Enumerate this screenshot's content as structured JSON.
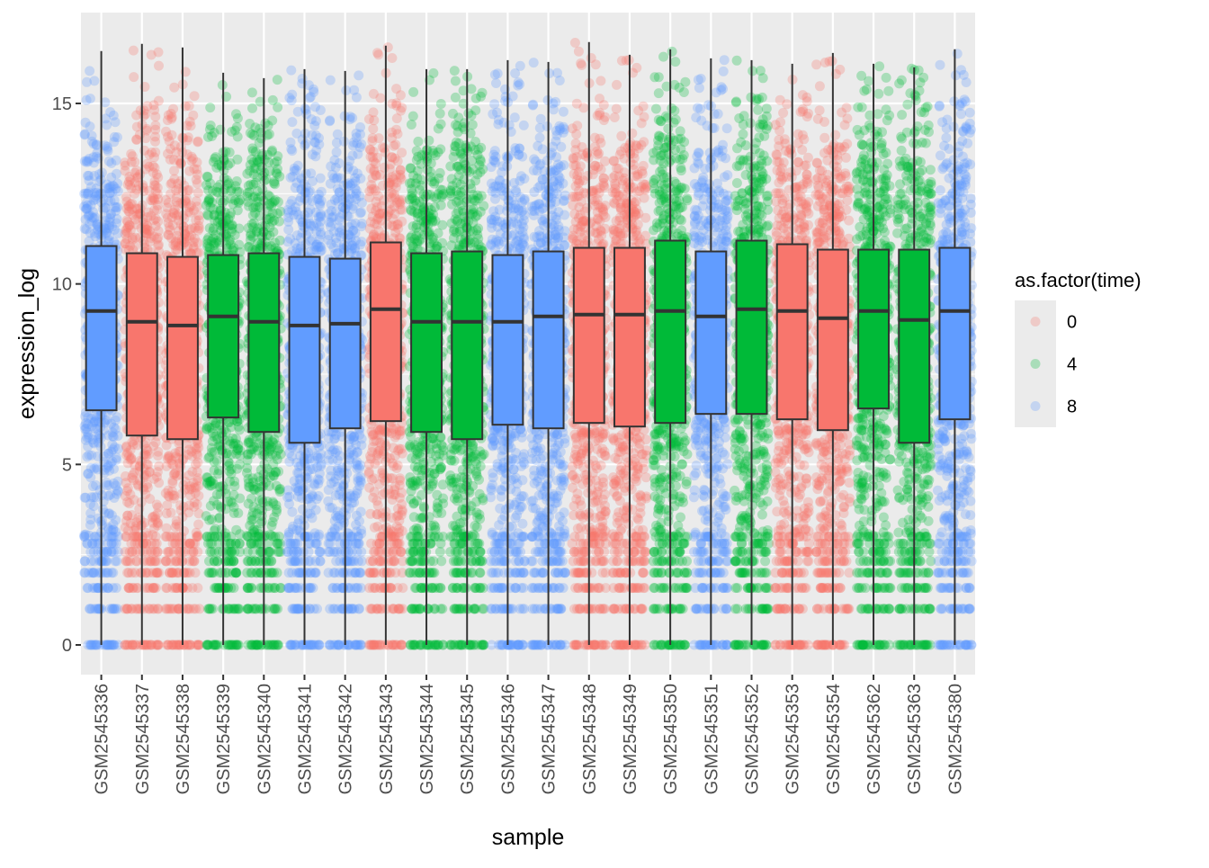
{
  "chart_data": {
    "type": "boxplot",
    "xlabel": "sample",
    "ylabel": "expression_log",
    "ylim": [
      -0.7,
      17.2
    ],
    "yticks": [
      0,
      5,
      10,
      15
    ],
    "ytick_labels": [
      "0",
      "5",
      "10",
      "15"
    ],
    "legend": {
      "title": "as.factor(time)",
      "position": "right",
      "entries": [
        {
          "label": "0",
          "color": "#F8766D"
        },
        {
          "label": "4",
          "color": "#00BA38"
        },
        {
          "label": "8",
          "color": "#619CFF"
        }
      ]
    },
    "background": "#EBEBEB",
    "grid": true,
    "samples": [
      {
        "name": "GSM2545336",
        "time": "8",
        "min": 0,
        "q1": 6.5,
        "median": 9.25,
        "q3": 11.05,
        "max": 16.45
      },
      {
        "name": "GSM2545337",
        "time": "0",
        "min": 0,
        "q1": 5.8,
        "median": 8.95,
        "q3": 10.85,
        "max": 16.65
      },
      {
        "name": "GSM2545338",
        "time": "0",
        "min": 0,
        "q1": 5.7,
        "median": 8.85,
        "q3": 10.75,
        "max": 16.55
      },
      {
        "name": "GSM2545339",
        "time": "4",
        "min": 0,
        "q1": 6.3,
        "median": 9.1,
        "q3": 10.8,
        "max": 15.85
      },
      {
        "name": "GSM2545340",
        "time": "4",
        "min": 0,
        "q1": 5.9,
        "median": 8.95,
        "q3": 10.85,
        "max": 15.7
      },
      {
        "name": "GSM2545341",
        "time": "8",
        "min": 0,
        "q1": 5.6,
        "median": 8.85,
        "q3": 10.75,
        "max": 15.95
      },
      {
        "name": "GSM2545342",
        "time": "8",
        "min": 0,
        "q1": 6.0,
        "median": 8.9,
        "q3": 10.7,
        "max": 15.9
      },
      {
        "name": "GSM2545343",
        "time": "0",
        "min": 0,
        "q1": 6.2,
        "median": 9.3,
        "q3": 11.15,
        "max": 16.6
      },
      {
        "name": "GSM2545344",
        "time": "4",
        "min": 0,
        "q1": 5.9,
        "median": 8.95,
        "q3": 10.85,
        "max": 15.95
      },
      {
        "name": "GSM2545345",
        "time": "4",
        "min": 0,
        "q1": 5.7,
        "median": 8.95,
        "q3": 10.9,
        "max": 15.95
      },
      {
        "name": "GSM2545346",
        "time": "8",
        "min": 0,
        "q1": 6.1,
        "median": 8.95,
        "q3": 10.8,
        "max": 16.2
      },
      {
        "name": "GSM2545347",
        "time": "8",
        "min": 0,
        "q1": 6.0,
        "median": 9.1,
        "q3": 10.9,
        "max": 16.15
      },
      {
        "name": "GSM2545348",
        "time": "0",
        "min": 0,
        "q1": 6.15,
        "median": 9.15,
        "q3": 11.0,
        "max": 16.7
      },
      {
        "name": "GSM2545349",
        "time": "0",
        "min": 0,
        "q1": 6.05,
        "median": 9.15,
        "q3": 11.0,
        "max": 16.35
      },
      {
        "name": "GSM2545350",
        "time": "4",
        "min": 0,
        "q1": 6.15,
        "median": 9.25,
        "q3": 11.2,
        "max": 16.5
      },
      {
        "name": "GSM2545351",
        "time": "8",
        "min": 0,
        "q1": 6.4,
        "median": 9.1,
        "q3": 10.9,
        "max": 16.25
      },
      {
        "name": "GSM2545352",
        "time": "4",
        "min": 0,
        "q1": 6.4,
        "median": 9.3,
        "q3": 11.2,
        "max": 16.2
      },
      {
        "name": "GSM2545353",
        "time": "0",
        "min": 0,
        "q1": 6.25,
        "median": 9.25,
        "q3": 11.1,
        "max": 16.1
      },
      {
        "name": "GSM2545354",
        "time": "0",
        "min": 0,
        "q1": 5.95,
        "median": 9.05,
        "q3": 10.95,
        "max": 16.4
      },
      {
        "name": "GSM2545362",
        "time": "4",
        "min": 0,
        "q1": 6.55,
        "median": 9.25,
        "q3": 10.95,
        "max": 16.1
      },
      {
        "name": "GSM2545363",
        "time": "4",
        "min": 0,
        "q1": 5.6,
        "median": 9.0,
        "q3": 10.95,
        "max": 16.0
      },
      {
        "name": "GSM2545380",
        "time": "8",
        "min": 0,
        "q1": 6.25,
        "median": 9.25,
        "q3": 11.0,
        "max": 16.5
      }
    ]
  }
}
